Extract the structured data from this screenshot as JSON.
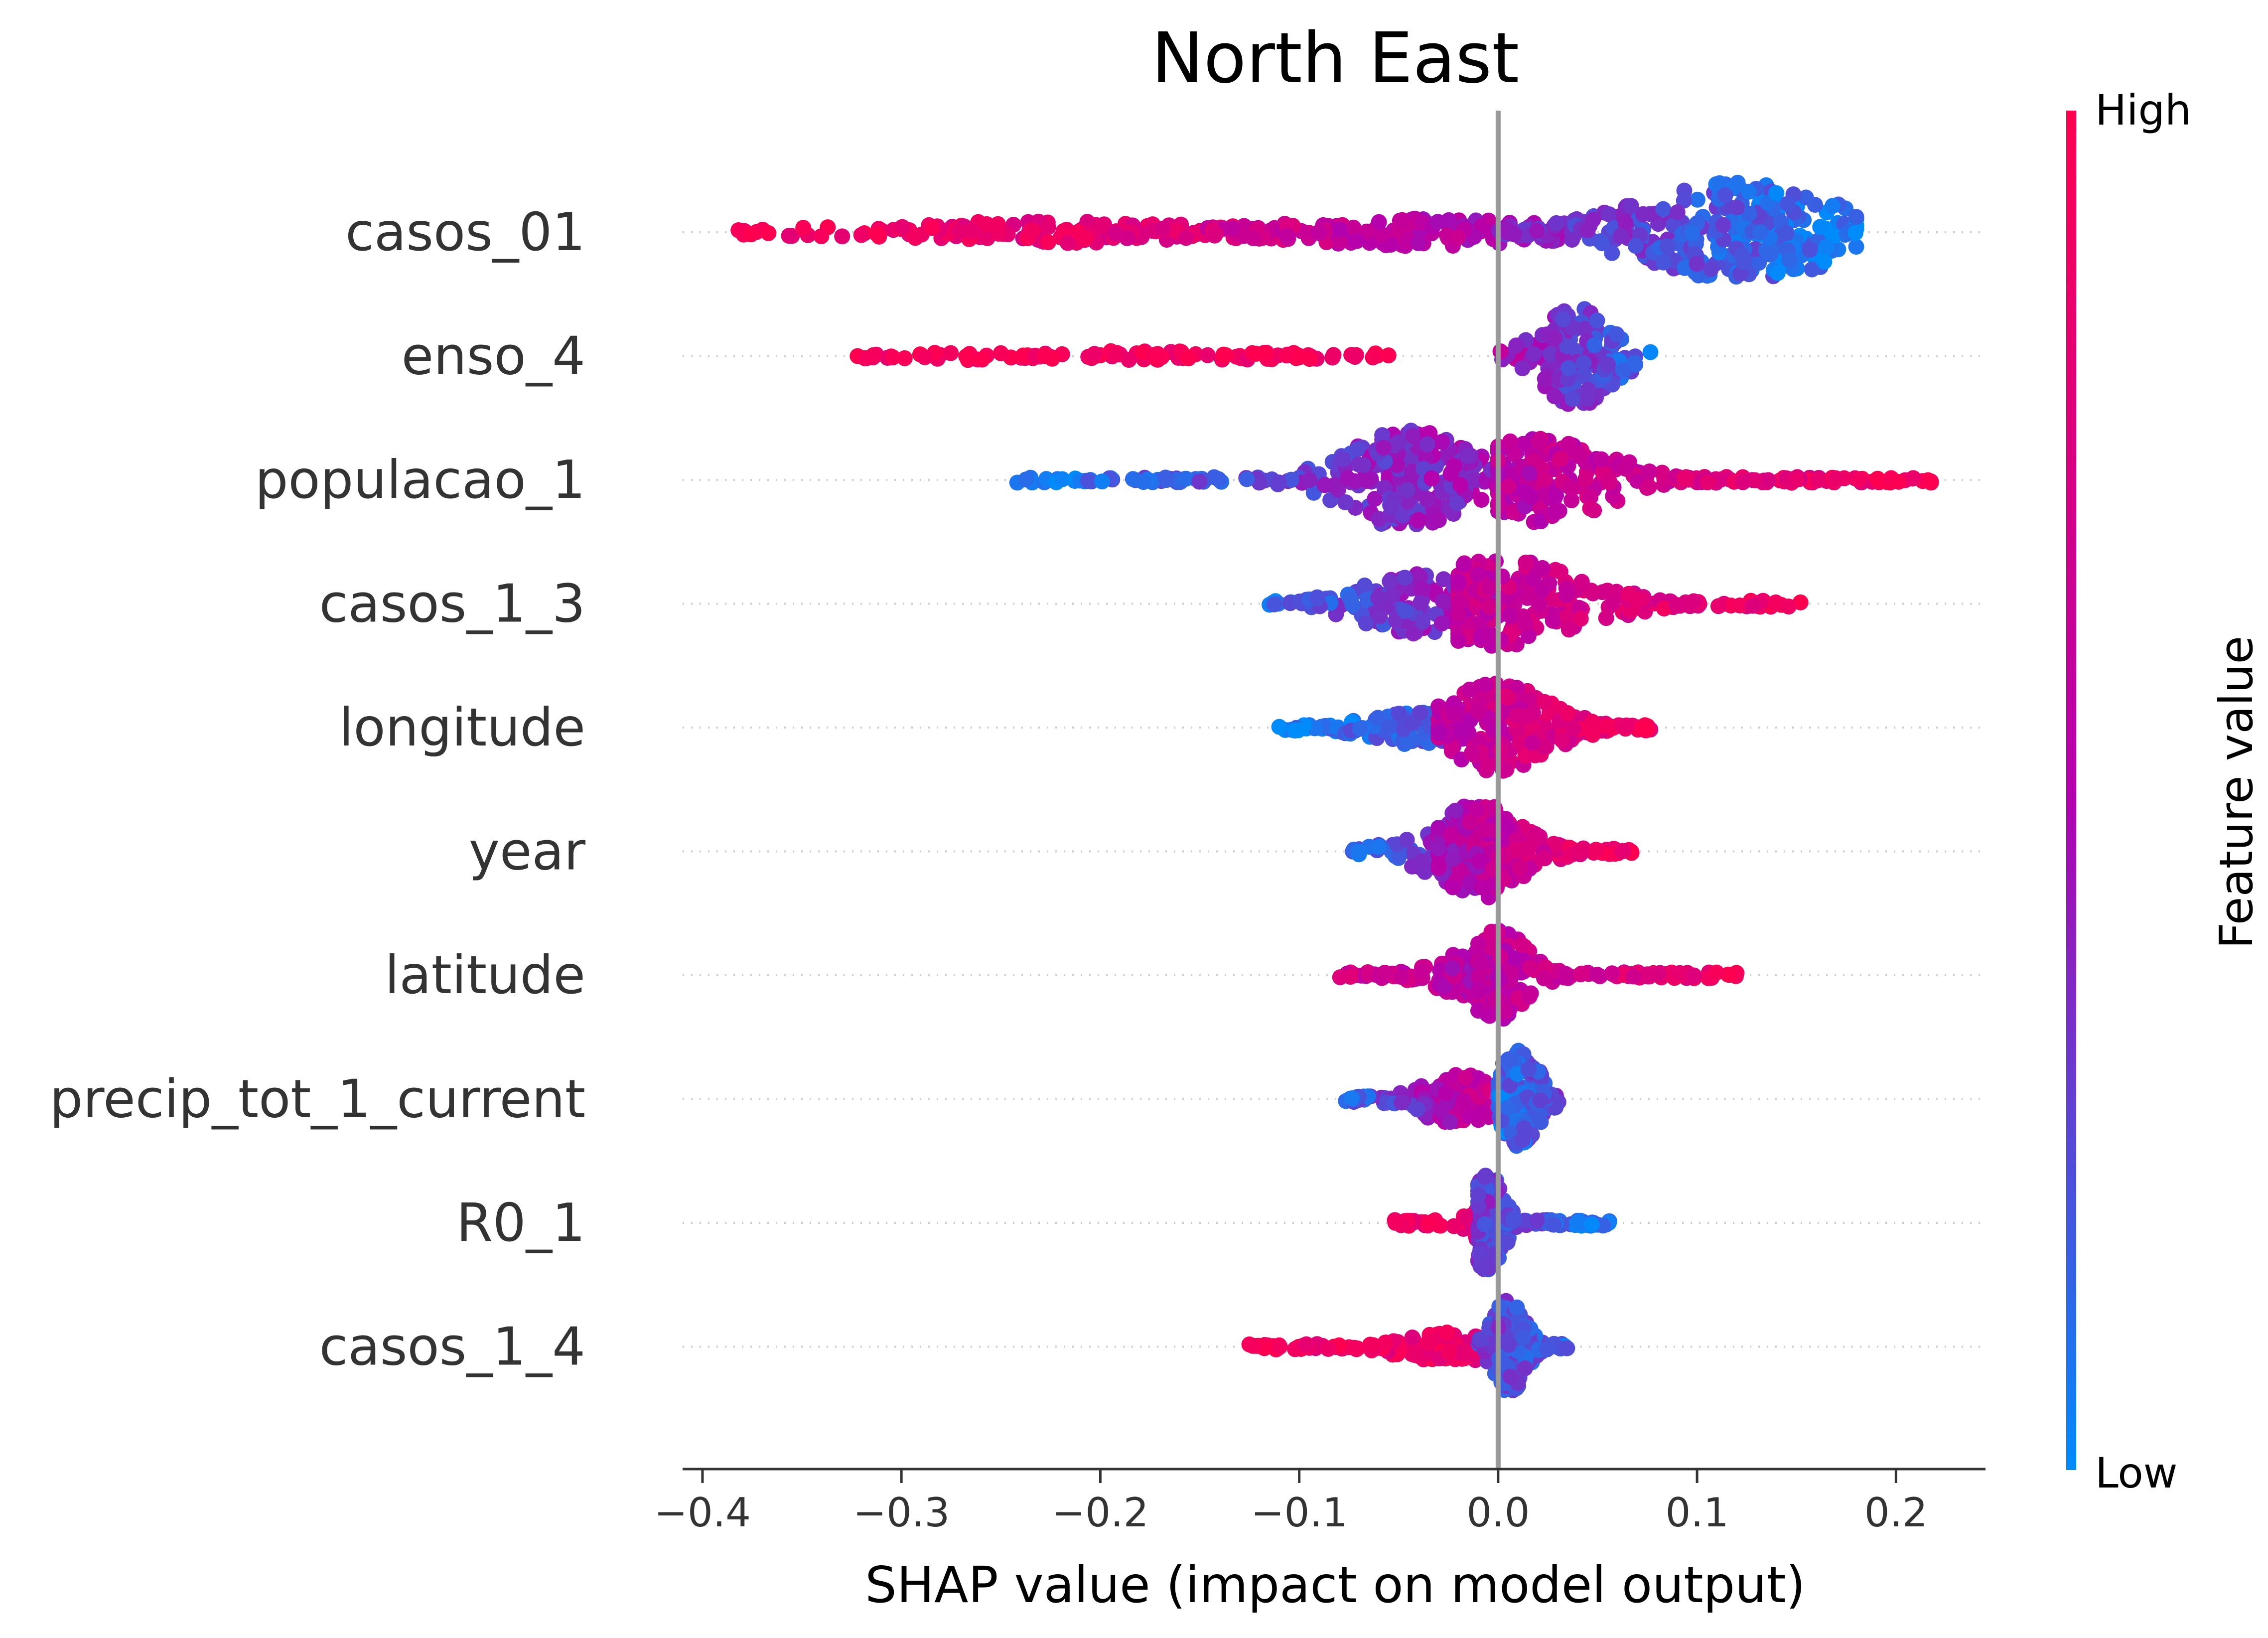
{
  "chart_data": {
    "type": "scatter",
    "subtype": "shap-beeswarm",
    "title": "North East",
    "xlabel": "SHAP value (impact on model output)",
    "xlim": [
      -0.41,
      0.245
    ],
    "xticks": [
      -0.4,
      -0.3,
      -0.2,
      -0.1,
      0.0,
      0.1,
      0.2
    ],
    "xtick_labels": [
      "−0.4",
      "−0.3",
      "−0.2",
      "−0.1",
      "0.0",
      "0.1",
      "0.2"
    ],
    "zero_line": 0.0,
    "colorbar": {
      "label": "Feature value",
      "high_label": "High",
      "low_label": "Low",
      "high_color": "#ff0051",
      "mid_color": "#b400ad",
      "low_color": "#008bfb"
    },
    "features": [
      {
        "name": "casos_01",
        "segments": [
          {
            "x0": -0.383,
            "x1": -0.12,
            "cx": -0.23,
            "amp": 0.22,
            "sig": 0.09,
            "n": 140,
            "c0": 0.95,
            "c1": 0.75
          },
          {
            "x0": -0.15,
            "x1": 0.03,
            "cx": -0.04,
            "amp": 0.28,
            "sig": 0.07,
            "n": 150,
            "c0": 0.72,
            "c1": 0.45
          },
          {
            "x0": 0.0,
            "x1": 0.18,
            "cx": 0.12,
            "amp": 1.0,
            "sig": 0.05,
            "n": 320,
            "c0": 0.4,
            "c1": 0.05
          }
        ]
      },
      {
        "name": "enso_4",
        "segments": [
          {
            "x0": -0.322,
            "x1": -0.048,
            "cx": -0.2,
            "amp": 0.1,
            "sig": 0.1,
            "n": 110,
            "c0": 0.95,
            "c1": 0.95
          },
          {
            "x0": 0.0,
            "x1": 0.078,
            "cx": 0.04,
            "amp": 1.0,
            "sig": 0.018,
            "n": 160,
            "c0": 0.5,
            "c1": 0.1
          }
        ]
      },
      {
        "name": "populacao_1",
        "segments": [
          {
            "x0": -0.244,
            "x1": 0.0,
            "cx": -0.045,
            "amp": 1.0,
            "sig": 0.03,
            "n": 260,
            "c0": 0.05,
            "c1": 0.45
          },
          {
            "x0": 0.0,
            "x1": 0.218,
            "cx": 0.02,
            "amp": 0.85,
            "sig": 0.035,
            "n": 260,
            "c0": 0.55,
            "c1": 0.95
          }
        ]
      },
      {
        "name": "casos_1_3",
        "segments": [
          {
            "x0": -0.115,
            "x1": 0.0,
            "cx": -0.04,
            "amp": 0.6,
            "sig": 0.03,
            "n": 150,
            "c0": 0.1,
            "c1": 0.5
          },
          {
            "x0": -0.02,
            "x1": 0.155,
            "cx": 0.0,
            "amp": 0.9,
            "sig": 0.04,
            "n": 220,
            "c0": 0.6,
            "c1": 0.95
          }
        ]
      },
      {
        "name": "longitude",
        "segments": [
          {
            "x0": -0.112,
            "x1": -0.02,
            "cx": -0.04,
            "amp": 0.35,
            "sig": 0.025,
            "n": 110,
            "c0": 0.05,
            "c1": 0.2
          },
          {
            "x0": -0.03,
            "x1": 0.078,
            "cx": 0.0,
            "amp": 0.9,
            "sig": 0.025,
            "n": 220,
            "c0": 0.55,
            "c1": 0.95
          }
        ]
      },
      {
        "name": "year",
        "segments": [
          {
            "x0": -0.075,
            "x1": -0.02,
            "cx": -0.03,
            "amp": 0.45,
            "sig": 0.02,
            "n": 70,
            "c0": 0.1,
            "c1": 0.4
          },
          {
            "x0": -0.03,
            "x1": 0.068,
            "cx": -0.01,
            "amp": 0.95,
            "sig": 0.022,
            "n": 220,
            "c0": 0.45,
            "c1": 0.95
          }
        ]
      },
      {
        "name": "latitude",
        "segments": [
          {
            "x0": -0.08,
            "x1": 0.0,
            "cx": -0.01,
            "amp": 0.5,
            "sig": 0.02,
            "n": 110,
            "c0": 0.7,
            "c1": 0.5
          },
          {
            "x0": -0.01,
            "x1": 0.12,
            "cx": 0.0,
            "amp": 0.9,
            "sig": 0.015,
            "n": 170,
            "c0": 0.55,
            "c1": 0.95
          }
        ]
      },
      {
        "name": "precip_tot_1_current",
        "segments": [
          {
            "x0": -0.078,
            "x1": 0.0,
            "cx": -0.02,
            "amp": 0.5,
            "sig": 0.02,
            "n": 130,
            "c0": 0.1,
            "c1": 0.7
          },
          {
            "x0": 0.0,
            "x1": 0.032,
            "cx": 0.01,
            "amp": 1.0,
            "sig": 0.01,
            "n": 150,
            "c0": 0.1,
            "c1": 0.3
          }
        ]
      },
      {
        "name": "R0_1",
        "segments": [
          {
            "x0": -0.052,
            "x1": 0.0,
            "cx": -0.005,
            "amp": 0.4,
            "sig": 0.01,
            "n": 80,
            "c0": 0.95,
            "c1": 0.8
          },
          {
            "x0": -0.01,
            "x1": 0.056,
            "cx": -0.005,
            "amp": 1.0,
            "sig": 0.008,
            "n": 150,
            "c0": 0.3,
            "c1": 0.05
          }
        ]
      },
      {
        "name": "casos_1_4",
        "segments": [
          {
            "x0": -0.126,
            "x1": 0.0,
            "cx": -0.02,
            "amp": 0.3,
            "sig": 0.03,
            "n": 150,
            "c0": 0.95,
            "c1": 0.85
          },
          {
            "x0": -0.01,
            "x1": 0.038,
            "cx": 0.005,
            "amp": 1.0,
            "sig": 0.008,
            "n": 120,
            "c0": 0.3,
            "c1": 0.1
          }
        ]
      }
    ]
  }
}
